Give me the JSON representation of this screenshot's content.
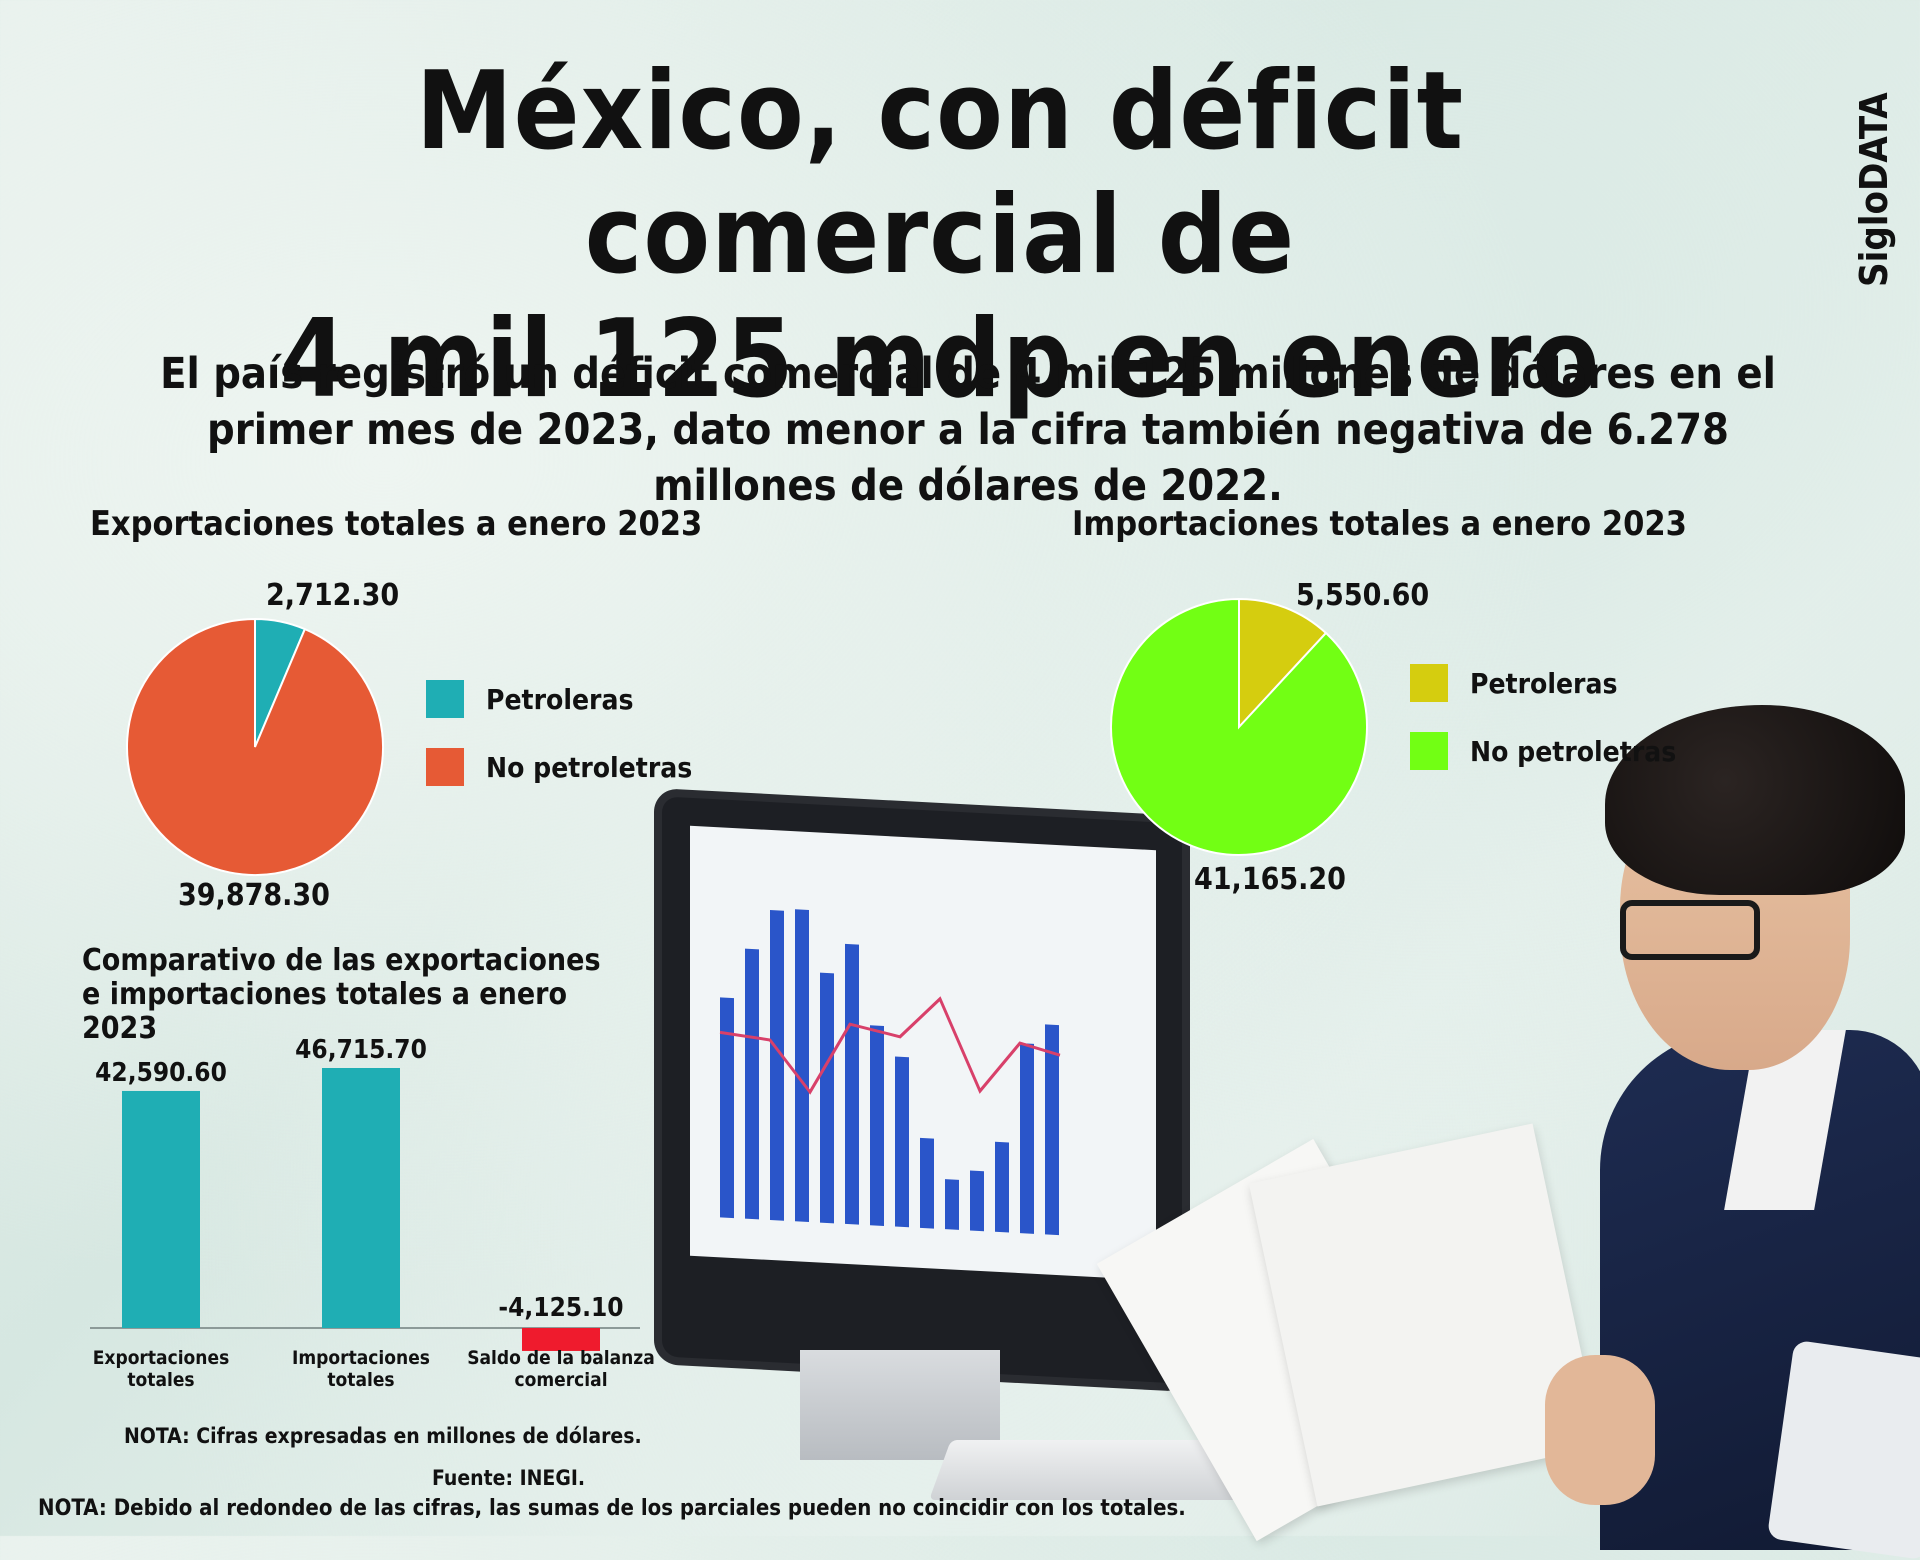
{
  "title": {
    "line1": "México, con déficit comercial de",
    "line2": "4 mil 125 mdp en enero"
  },
  "brand": "SigloDATA",
  "lead": "El país registró un déficit comercial de 4 mil 125 millones de dólares en el primer mes de 2023, dato menor a la cifra también negativa de 6.278 millones de dólares de 2022.",
  "chart_data": [
    {
      "type": "pie",
      "title": "Exportaciones totales a enero 2023",
      "categories": [
        "Petroleras",
        "No petroletras"
      ],
      "values": [
        2712.3,
        39878.3
      ],
      "value_labels": [
        "2,712.30",
        "39,878.30"
      ],
      "colors": [
        "#1faeb4",
        "#e65a35"
      ],
      "legend": "right"
    },
    {
      "type": "pie",
      "title": "Importaciones totales a enero 2023",
      "categories": [
        "Petroleras",
        "No petroletras"
      ],
      "values": [
        5550.6,
        41165.2
      ],
      "value_labels": [
        "5,550.60",
        "41,165.20"
      ],
      "colors": [
        "#d5cd0f",
        "#72ff14"
      ],
      "legend": "right"
    },
    {
      "type": "bar",
      "title": "Comparativo de las exportaciones e importaciones totales a enero 2023",
      "categories": [
        "Exportaciones totales",
        "Importaciones totales",
        "Saldo de la balanza comercial"
      ],
      "values": [
        42590.6,
        46715.7,
        -4125.1
      ],
      "value_labels": [
        "42,590.60",
        "46,715.70",
        "-4,125.10"
      ],
      "colors": [
        "#1faeb4",
        "#1faeb4",
        "#ef1b2d"
      ]
    }
  ],
  "notes": {
    "units": "NOTA: Cifras expresadas en millones de dólares.",
    "source": "Fuente: INEGI.",
    "rounding": "NOTA: Debido al redondeo de las cifras, las sumas de los parciales pueden no coincidir con los totales."
  }
}
